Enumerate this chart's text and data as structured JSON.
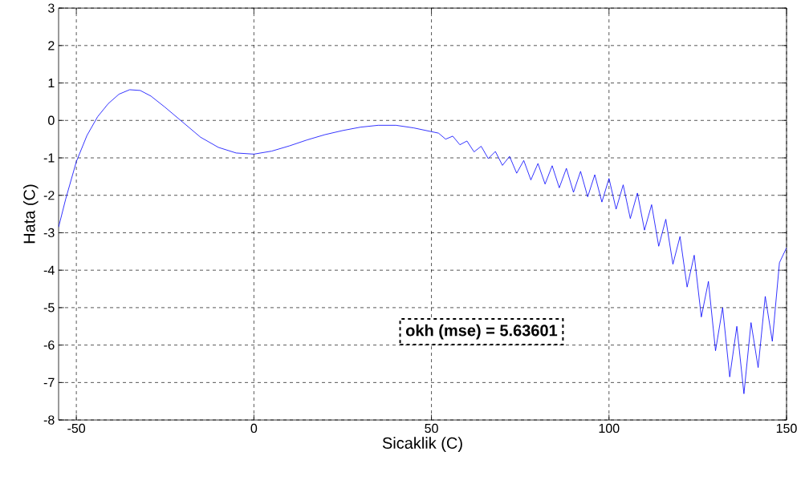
{
  "chart_data": {
    "type": "line",
    "xlabel": "Sicaklik (C)",
    "ylabel": "Hata (C)",
    "annotations": [
      "okh (mse) = 5.63601"
    ],
    "xlim": [
      -55,
      150
    ],
    "ylim": [
      -8,
      3
    ],
    "xticks": [
      -50,
      0,
      50,
      100,
      150
    ],
    "yticks": [
      -8,
      -7,
      -6,
      -5,
      -4,
      -3,
      -2,
      -1,
      0,
      1,
      2,
      3
    ],
    "grid": true,
    "line_style": "solid",
    "series": [
      {
        "color": "#0000ff",
        "x": [
          -55,
          -53,
          -50,
          -47,
          -44,
          -41,
          -38,
          -35,
          -32,
          -29,
          -25,
          -20,
          -15,
          -10,
          -5,
          0,
          5,
          10,
          15,
          20,
          25,
          30,
          35,
          40,
          45,
          50,
          52,
          54,
          56,
          58,
          60,
          62,
          64,
          66,
          68,
          70,
          72,
          74,
          76,
          78,
          80,
          82,
          84,
          86,
          88,
          90,
          92,
          94,
          96,
          98,
          100,
          102,
          104,
          106,
          108,
          110,
          112,
          114,
          116,
          118,
          120,
          122,
          124,
          126,
          128,
          130,
          132,
          134,
          136,
          138,
          140,
          142,
          144,
          146,
          148,
          150
        ],
        "values": [
          -2.85,
          -2.1,
          -1.1,
          -0.4,
          0.1,
          0.45,
          0.7,
          0.82,
          0.8,
          0.65,
          0.35,
          -0.05,
          -0.45,
          -0.72,
          -0.87,
          -0.9,
          -0.82,
          -0.68,
          -0.52,
          -0.38,
          -0.27,
          -0.18,
          -0.13,
          -0.13,
          -0.2,
          -0.3,
          -0.34,
          -0.5,
          -0.42,
          -0.65,
          -0.55,
          -0.84,
          -0.69,
          -1.02,
          -0.83,
          -1.2,
          -0.96,
          -1.41,
          -1.07,
          -1.59,
          -1.15,
          -1.7,
          -1.21,
          -1.8,
          -1.28,
          -1.92,
          -1.36,
          -2.04,
          -1.45,
          -2.18,
          -1.55,
          -2.37,
          -1.72,
          -2.62,
          -1.94,
          -2.93,
          -2.25,
          -3.36,
          -2.64,
          -3.84,
          -3.1,
          -4.45,
          -3.6,
          -5.25,
          -4.3,
          -6.15,
          -5.0,
          -6.85,
          -5.5,
          -7.3,
          -5.4,
          -6.6,
          -4.7,
          -5.9,
          -3.8,
          -3.4
        ]
      }
    ]
  }
}
